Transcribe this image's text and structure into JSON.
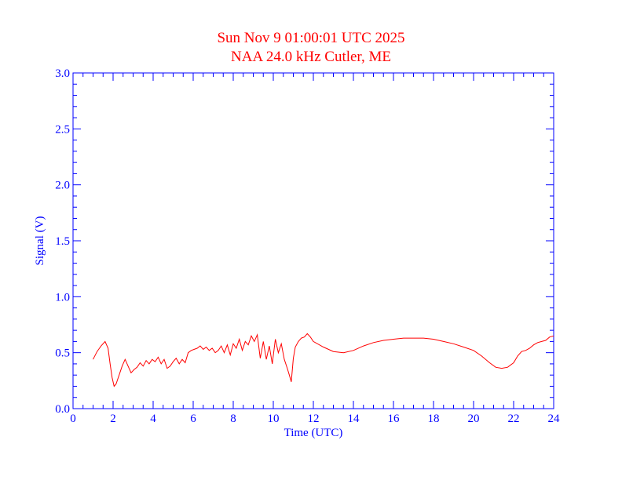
{
  "colors": {
    "axes": "#0000ff",
    "title": "#ff0000",
    "series": "#ff0000",
    "background": "#ffffff"
  },
  "chart_data": {
    "type": "line",
    "title": "Sun Nov 9 01:00:01 UTC 2025",
    "subtitle": "NAA 24.0 kHz Cutler, ME",
    "xlabel": "Time (UTC)",
    "ylabel": "Signal (V)",
    "xlim": [
      0,
      24
    ],
    "ylim": [
      0,
      3.0
    ],
    "xticks": [
      0,
      2,
      4,
      6,
      8,
      10,
      12,
      14,
      16,
      18,
      20,
      22,
      24
    ],
    "xtick_labels": [
      "0",
      "2",
      "4",
      "6",
      "8",
      "10",
      "12",
      "14",
      "16",
      "18",
      "20",
      "22",
      "24"
    ],
    "yticks": [
      0,
      0.5,
      1.0,
      1.5,
      2.0,
      2.5,
      3.0
    ],
    "ytick_labels": [
      "0.0",
      "0.5",
      "1.0",
      "1.5",
      "2.0",
      "2.5",
      "3.0"
    ],
    "grid": false,
    "series": [
      {
        "x": [
          1.0,
          1.2,
          1.4,
          1.6,
          1.75,
          1.85,
          1.95,
          2.05,
          2.15,
          2.3,
          2.45,
          2.6,
          2.75,
          2.9,
          3.05,
          3.2,
          3.35,
          3.5,
          3.65,
          3.8,
          3.95,
          4.1,
          4.25,
          4.4,
          4.55,
          4.7,
          4.85,
          5.0,
          5.15,
          5.3,
          5.45,
          5.6,
          5.75,
          5.9,
          6.05,
          6.2,
          6.35,
          6.5,
          6.65,
          6.8,
          6.95,
          7.1,
          7.25,
          7.4,
          7.55,
          7.7,
          7.85,
          8.0,
          8.15,
          8.3,
          8.45,
          8.6,
          8.75,
          8.9,
          9.05,
          9.2,
          9.35,
          9.5,
          9.65,
          9.8,
          9.95,
          10.1,
          10.25,
          10.4,
          10.55,
          10.7,
          10.8,
          10.9,
          11.0,
          11.1,
          11.25,
          11.4,
          11.55,
          11.7,
          11.85,
          12.0,
          12.5,
          13.0,
          13.5,
          14.0,
          14.5,
          15.0,
          15.5,
          16.0,
          16.5,
          17.0,
          17.5,
          18.0,
          18.5,
          19.0,
          19.5,
          20.0,
          20.4,
          20.8,
          21.1,
          21.4,
          21.7,
          22.0,
          22.2,
          22.4,
          22.6,
          22.8,
          23.0,
          23.2,
          23.4,
          23.6,
          23.8,
          24.0
        ],
        "y": [
          0.44,
          0.51,
          0.56,
          0.6,
          0.54,
          0.4,
          0.28,
          0.2,
          0.22,
          0.3,
          0.38,
          0.44,
          0.38,
          0.32,
          0.35,
          0.37,
          0.41,
          0.38,
          0.43,
          0.4,
          0.44,
          0.42,
          0.46,
          0.4,
          0.44,
          0.36,
          0.38,
          0.42,
          0.45,
          0.4,
          0.44,
          0.41,
          0.5,
          0.52,
          0.53,
          0.54,
          0.56,
          0.53,
          0.55,
          0.52,
          0.54,
          0.5,
          0.52,
          0.56,
          0.5,
          0.57,
          0.48,
          0.58,
          0.54,
          0.62,
          0.52,
          0.6,
          0.57,
          0.65,
          0.6,
          0.66,
          0.45,
          0.6,
          0.44,
          0.56,
          0.4,
          0.62,
          0.5,
          0.58,
          0.44,
          0.36,
          0.3,
          0.24,
          0.45,
          0.55,
          0.6,
          0.63,
          0.64,
          0.67,
          0.64,
          0.6,
          0.55,
          0.51,
          0.5,
          0.52,
          0.56,
          0.59,
          0.61,
          0.62,
          0.63,
          0.63,
          0.63,
          0.62,
          0.6,
          0.58,
          0.55,
          0.52,
          0.47,
          0.41,
          0.37,
          0.36,
          0.37,
          0.41,
          0.47,
          0.51,
          0.52,
          0.54,
          0.57,
          0.59,
          0.6,
          0.61,
          0.64,
          0.65
        ]
      }
    ]
  }
}
